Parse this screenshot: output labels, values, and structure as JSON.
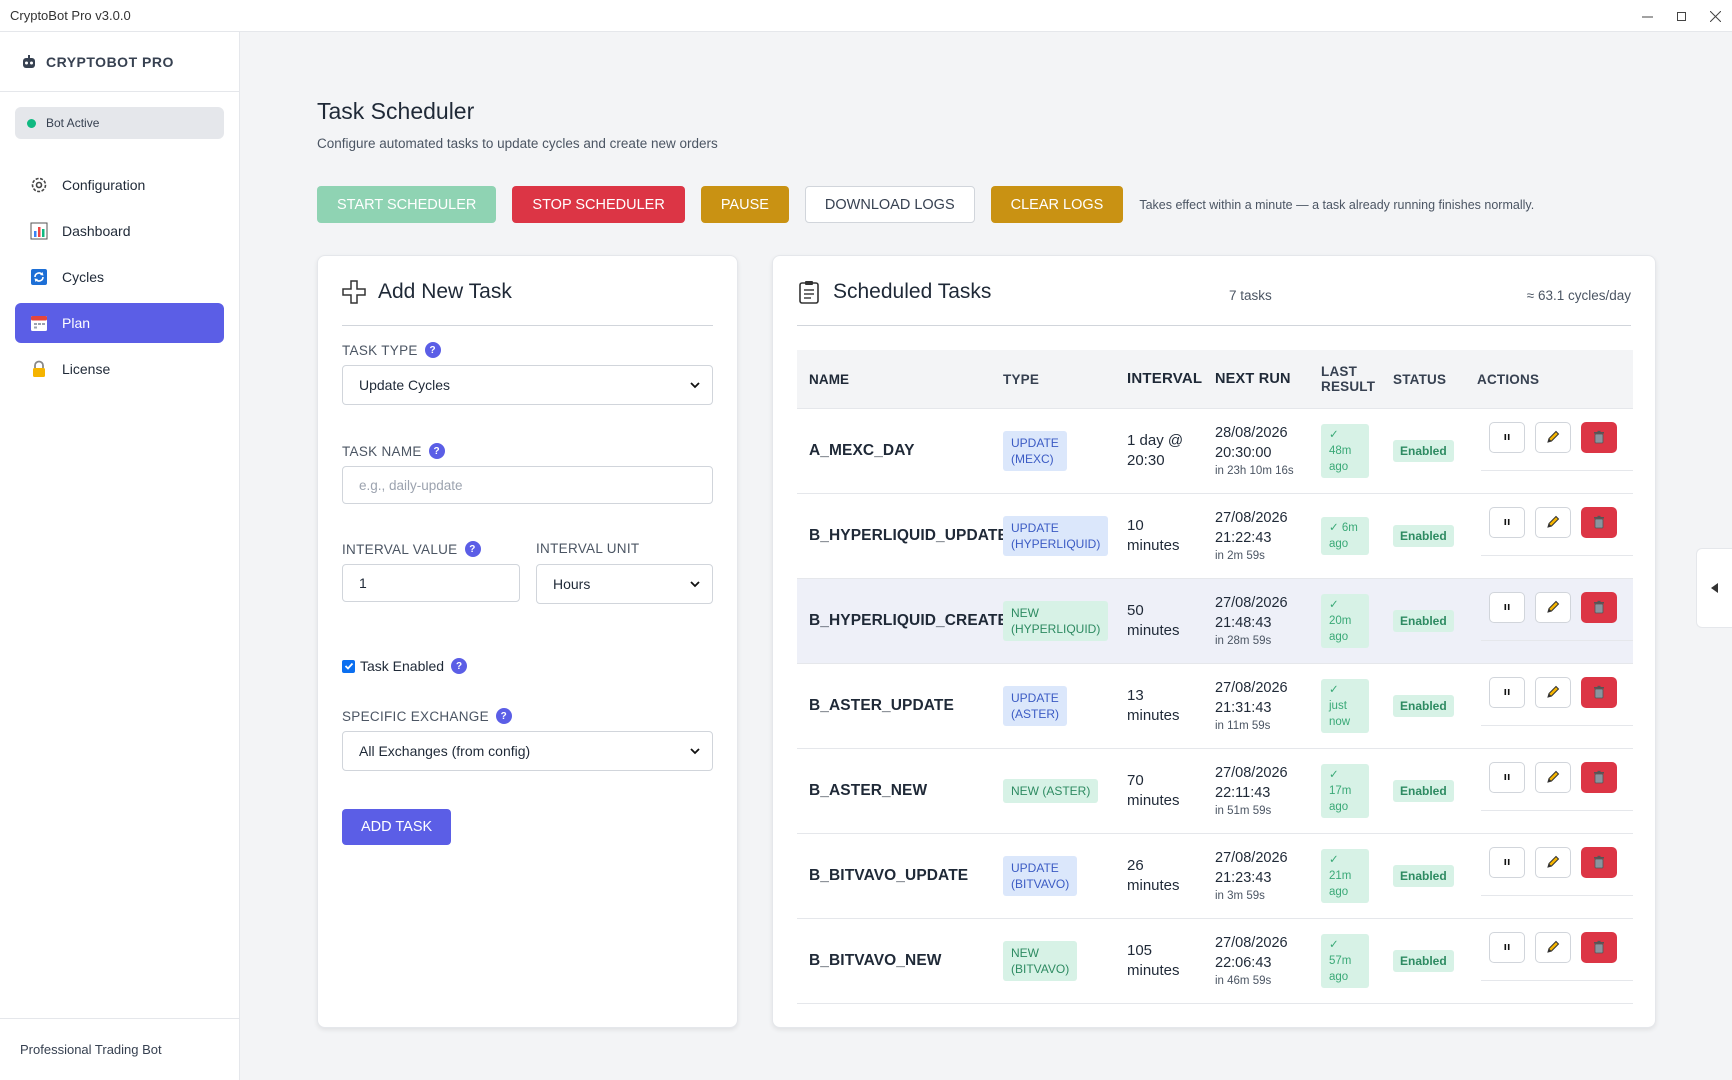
{
  "window": {
    "title": "CryptoBot Pro v3.0.0"
  },
  "sidebar": {
    "brand": "CRYPTOBOT PRO",
    "status": "Bot Active",
    "items": [
      {
        "label": "Configuration",
        "icon": "gear-icon"
      },
      {
        "label": "Dashboard",
        "icon": "bar-chart-icon"
      },
      {
        "label": "Cycles",
        "icon": "cycle-icon"
      },
      {
        "label": "Plan",
        "icon": "calendar-icon",
        "active": true
      },
      {
        "label": "License",
        "icon": "lock-icon"
      }
    ],
    "footer": "Professional Trading Bot"
  },
  "page": {
    "title": "Task Scheduler",
    "subtitle": "Configure automated tasks to update cycles and create new orders"
  },
  "toolbar": {
    "start_label": "START SCHEDULER",
    "stop_label": "STOP SCHEDULER",
    "pause_label": "PAUSE",
    "download_label": "DOWNLOAD LOGS",
    "clear_label": "CLEAR LOGS",
    "note": "Takes effect within a minute — a task already running finishes normally."
  },
  "add_task": {
    "title": "Add New Task",
    "task_type_label": "TASK TYPE",
    "task_type_value": "Update Cycles",
    "task_name_label": "TASK NAME",
    "task_name_placeholder": "e.g., daily-update",
    "interval_value_label": "INTERVAL VALUE",
    "interval_value": "1",
    "interval_unit_label": "INTERVAL UNIT",
    "interval_unit_value": "Hours",
    "enabled_label": "Task Enabled",
    "exchange_label": "SPECIFIC EXCHANGE",
    "exchange_value": "All Exchanges (from config)",
    "add_button": "ADD TASK"
  },
  "tasks": {
    "title": "Scheduled Tasks",
    "count": "7 tasks",
    "rate": "≈ 63.1 cycles/day",
    "columns": {
      "name": "NAME",
      "type": "TYPE",
      "interval": "INTERVAL",
      "next_run": "NEXT RUN",
      "last_result_1": "LAST",
      "last_result_2": "RESULT",
      "status": "STATUS",
      "actions": "ACTIONS"
    },
    "rows": [
      {
        "name": "A_MEXC_DAY",
        "type1": "UPDATE",
        "type2": "(MEXC)",
        "kind": "update",
        "interval1": "1 day @",
        "interval2": "20:30",
        "date": "28/08/2026",
        "time": "20:30:00",
        "in": "in 23h 10m 16s",
        "last1": "✓",
        "last2": "48m",
        "last3": "ago",
        "status": "Enabled"
      },
      {
        "name": "B_HYPERLIQUID_UPDATE",
        "type1": "UPDATE",
        "type2": "(HYPERLIQUID)",
        "kind": "update",
        "interval1": "10",
        "interval2": "minutes",
        "date": "27/08/2026",
        "time": "21:22:43",
        "in": "in 2m 59s",
        "last1": "✓ 6m",
        "last2": "ago",
        "last3": "",
        "status": "Enabled"
      },
      {
        "name": "B_HYPERLIQUID_CREATE",
        "type1": "NEW",
        "type2": "(HYPERLIQUID)",
        "kind": "new",
        "interval1": "50",
        "interval2": "minutes",
        "date": "27/08/2026",
        "time": "21:48:43",
        "in": "in 28m 59s",
        "last1": "✓",
        "last2": "20m",
        "last3": "ago",
        "status": "Enabled"
      },
      {
        "name": "B_ASTER_UPDATE",
        "type1": "UPDATE",
        "type2": "(ASTER)",
        "kind": "update",
        "interval1": "13",
        "interval2": "minutes",
        "date": "27/08/2026",
        "time": "21:31:43",
        "in": "in 11m 59s",
        "last1": "✓",
        "last2": "just",
        "last3": "now",
        "status": "Enabled"
      },
      {
        "name": "B_ASTER_NEW",
        "type1": "NEW (ASTER)",
        "type2": "",
        "kind": "new",
        "interval1": "70",
        "interval2": "minutes",
        "date": "27/08/2026",
        "time": "22:11:43",
        "in": "in 51m 59s",
        "last1": "✓",
        "last2": "17m",
        "last3": "ago",
        "status": "Enabled"
      },
      {
        "name": "B_BITVAVO_UPDATE",
        "type1": "UPDATE",
        "type2": "(BITVAVO)",
        "kind": "update",
        "interval1": "26",
        "interval2": "minutes",
        "date": "27/08/2026",
        "time": "21:23:43",
        "in": "in 3m 59s",
        "last1": "✓",
        "last2": "21m",
        "last3": "ago",
        "status": "Enabled"
      },
      {
        "name": "B_BITVAVO_NEW",
        "type1": "NEW",
        "type2": "(BITVAVO)",
        "kind": "new",
        "interval1": "105",
        "interval2": "minutes",
        "date": "27/08/2026",
        "time": "22:06:43",
        "in": "in 46m 59s",
        "last1": "✓",
        "last2": "57m",
        "last3": "ago",
        "status": "Enabled"
      }
    ]
  },
  "colors": {
    "accent": "#5b5ee6",
    "danger": "#dc3545",
    "warning": "#c99213",
    "success": "#10b981"
  }
}
